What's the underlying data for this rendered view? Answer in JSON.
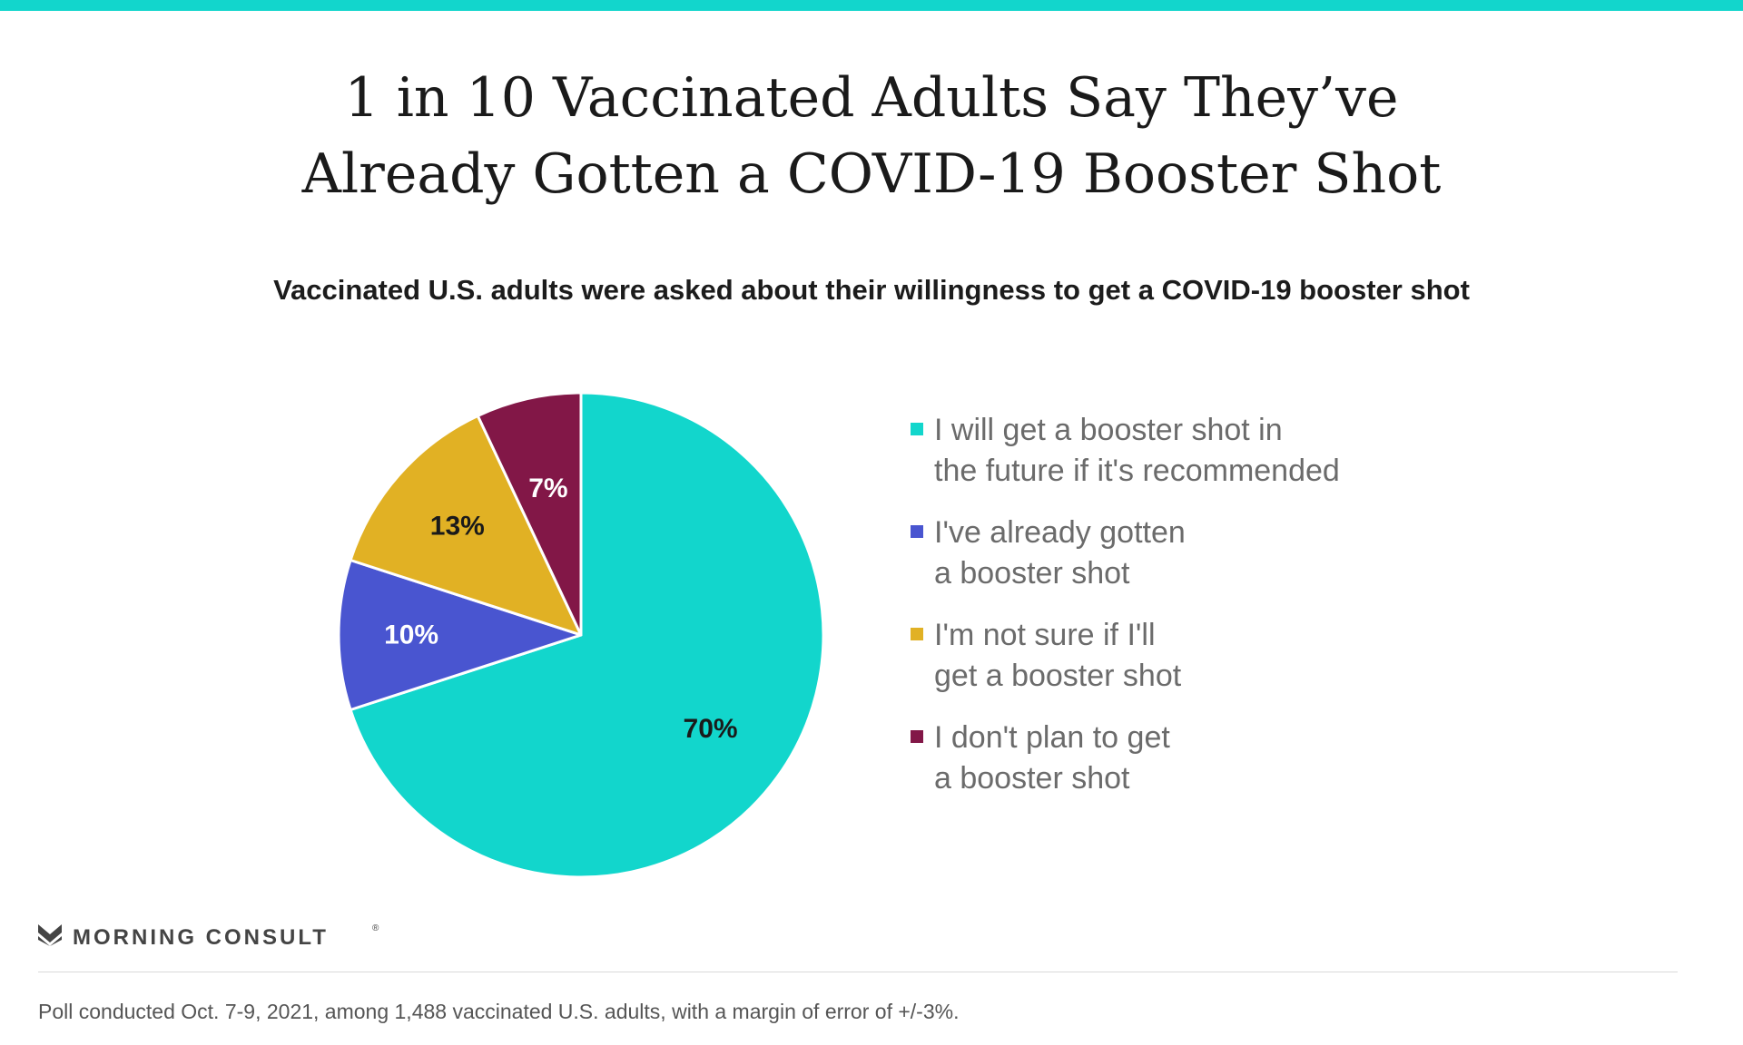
{
  "header": {
    "title_line1": "1 in 10 Vaccinated Adults Say They’ve",
    "title_line2": "Already Gotten a COVID-19 Booster Shot",
    "subtitle": "Vaccinated U.S. adults were asked about their willingness to get a COVID-19 booster shot"
  },
  "chart_data": {
    "type": "pie",
    "title": "1 in 10 Vaccinated Adults Say They’ve Already Gotten a COVID-19 Booster Shot",
    "subtitle": "Vaccinated U.S. adults were asked about their willingness to get a COVID-19 booster shot",
    "slices": [
      {
        "label": "I will get a booster shot in\nthe future if it's recommended",
        "value": 70,
        "display": "70%",
        "color": "#12d6cc",
        "label_color": "#1a1a1a"
      },
      {
        "label": "I've already gotten\na booster shot",
        "value": 10,
        "display": "10%",
        "color": "#4955d0",
        "label_color": "#ffffff"
      },
      {
        "label": "I'm not sure if I'll\nget a booster shot",
        "value": 13,
        "display": "13%",
        "color": "#e1b124",
        "label_color": "#1a1a1a"
      },
      {
        "label": "I don't plan to get\na booster shot",
        "value": 7,
        "display": "7%",
        "color": "#821747",
        "label_color": "#ffffff"
      }
    ],
    "legend_position": "right"
  },
  "branding": {
    "name": "MORNING CONSULT",
    "registered": "®",
    "logo_icon": "morning-consult-logo-icon"
  },
  "footnote": "Poll conducted Oct. 7-9, 2021, among 1,488 vaccinated U.S. adults, with a margin of error of +/-3%."
}
